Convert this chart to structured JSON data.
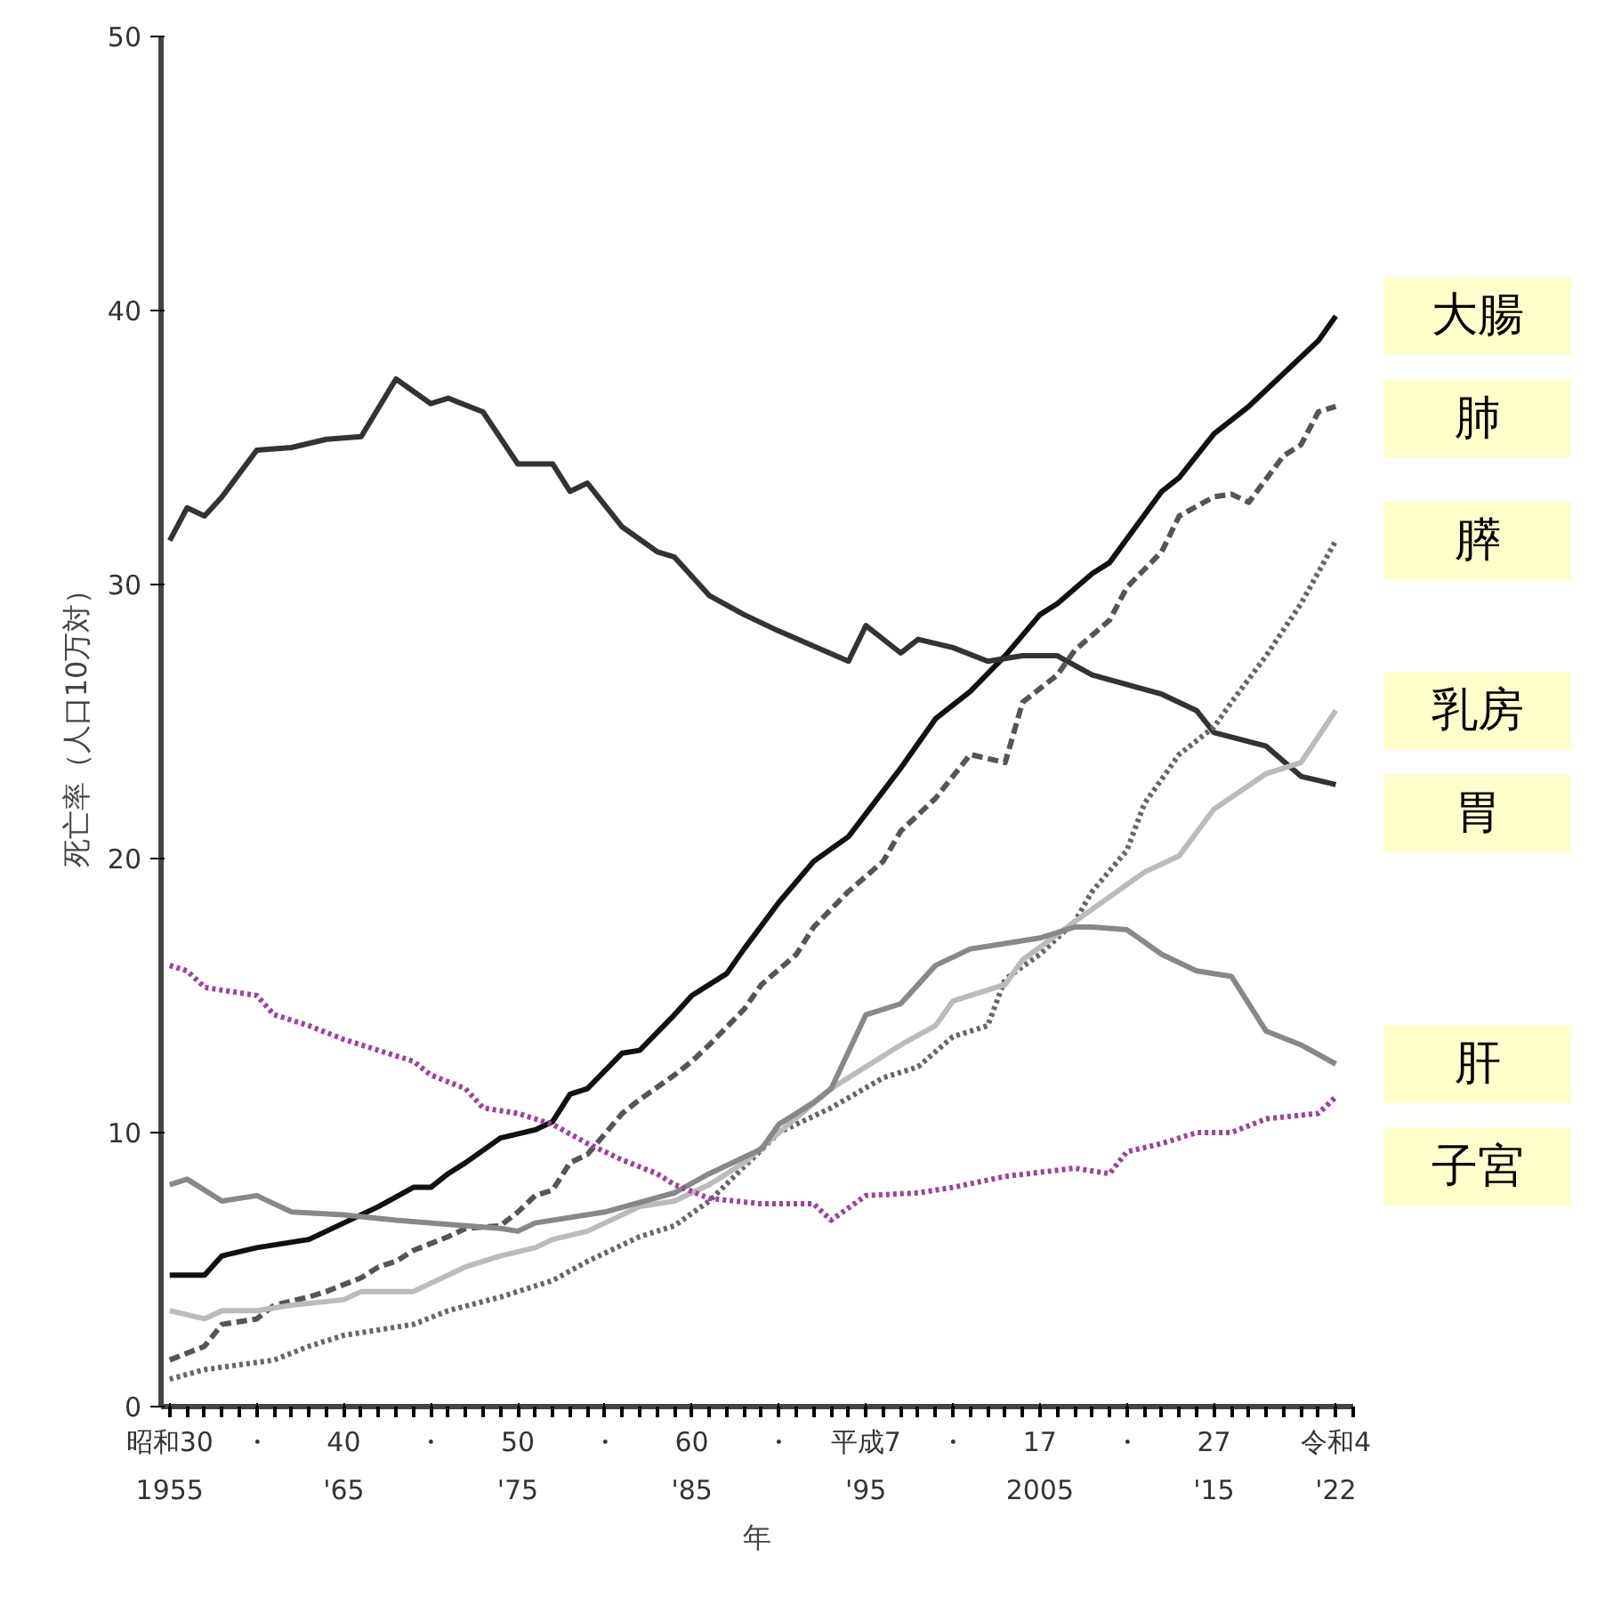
{
  "chart_data": {
    "type": "line",
    "xlabel": "年",
    "ylabel": "死亡率（人口10万対）",
    "xlim": [
      1954.5,
      2023
    ],
    "ylim": [
      0,
      50
    ],
    "xticks": [
      1955,
      {
        "value": 1960,
        "label": null
      },
      {
        "value": 1965,
        "label": "'65"
      },
      {
        "value": 1970,
        "label": null
      },
      {
        "value": 1975,
        "label": "'75"
      },
      {
        "value": 1980,
        "label": null
      },
      {
        "value": 1985,
        "label": "'85"
      },
      {
        "value": 1990,
        "label": null
      },
      {
        "value": 1995,
        "label": "'95"
      },
      {
        "value": 2000,
        "label": null
      },
      2005,
      {
        "value": 2010,
        "label": null
      },
      {
        "value": 2015,
        "label": "'15"
      },
      {
        "value": 2022,
        "label": "'22"
      }
    ],
    "annotations": [
      "昭和30",
      "・",
      "40",
      "・",
      "50",
      "・",
      "60",
      "・",
      "平成7",
      "・",
      "17",
      "・",
      "27",
      "令和4"
    ],
    "yticks": [
      0,
      10,
      20,
      30,
      40,
      50
    ],
    "grid": false,
    "legend": false,
    "series": [
      {
        "name": "大腸",
        "color": "#111111",
        "line_style": "solid",
        "x": [
          1955,
          1957,
          1958,
          1960,
          1963,
          1965,
          1967,
          1969,
          1970,
          1971,
          1972,
          1974,
          1976,
          1977,
          1978,
          1979,
          1981,
          1982,
          1984,
          1985,
          1987,
          1988,
          1990,
          1992,
          1994,
          1997,
          1999,
          2001,
          2003,
          2005,
          2006,
          2008,
          2009,
          2012,
          2013,
          2015,
          2017,
          2021,
          2022
        ],
        "values": [
          4.8,
          4.8,
          5.5,
          5.8,
          6.1,
          6.7,
          7.3,
          8.0,
          8.0,
          8.5,
          8.9,
          9.8,
          10.1,
          10.4,
          11.4,
          11.6,
          12.9,
          13.0,
          14.3,
          15.0,
          15.8,
          16.7,
          18.4,
          19.9,
          20.8,
          23.3,
          25.1,
          26.1,
          27.4,
          28.9,
          29.3,
          30.4,
          30.8,
          33.4,
          33.9,
          35.5,
          36.5,
          38.9,
          39.8
        ]
      },
      {
        "name": "胃",
        "color": "#333333",
        "line_style": "solid",
        "x": [
          1955,
          1956,
          1957,
          1958,
          1960,
          1962,
          1964,
          1966,
          1968,
          1970,
          1971,
          1973,
          1975,
          1977,
          1978,
          1979,
          1981,
          1983,
          1984,
          1986,
          1988,
          1990,
          1994,
          1995,
          1997,
          1998,
          2000,
          2002,
          2004,
          2006,
          2008,
          2012,
          2014,
          2015,
          2018,
          2020,
          2022
        ],
        "values": [
          31.6,
          32.8,
          32.5,
          33.2,
          34.9,
          35.0,
          35.3,
          35.4,
          37.5,
          36.6,
          36.8,
          36.3,
          34.4,
          34.4,
          33.4,
          33.7,
          32.1,
          31.2,
          31.0,
          29.6,
          28.9,
          28.3,
          27.2,
          28.5,
          27.5,
          28.0,
          27.7,
          27.2,
          27.4,
          27.4,
          26.7,
          26.0,
          25.4,
          24.6,
          24.1,
          23.0,
          22.7
        ]
      },
      {
        "name": "肺",
        "color": "#555555",
        "line_style": "dashed",
        "x": [
          1955,
          1957,
          1958,
          1960,
          1961,
          1963,
          1964,
          1966,
          1967,
          1968,
          1969,
          1971,
          1972,
          1974,
          1975,
          1976,
          1977,
          1978,
          1979,
          1981,
          1982,
          1984,
          1985,
          1986,
          1988,
          1989,
          1991,
          1992,
          1994,
          1996,
          1997,
          1999,
          2001,
          2003,
          2004,
          2006,
          2007,
          2009,
          2010,
          2012,
          2013,
          2015,
          2016,
          2017,
          2019,
          2020,
          2021,
          2022
        ],
        "values": [
          1.7,
          2.2,
          3.0,
          3.2,
          3.7,
          4.0,
          4.2,
          4.7,
          5.1,
          5.3,
          5.7,
          6.2,
          6.5,
          6.6,
          7.1,
          7.7,
          7.9,
          8.9,
          9.2,
          10.7,
          11.2,
          12.1,
          12.6,
          13.2,
          14.5,
          15.4,
          16.5,
          17.5,
          18.8,
          19.9,
          21.0,
          22.2,
          23.8,
          23.5,
          25.7,
          26.7,
          27.6,
          28.7,
          29.9,
          31.2,
          32.5,
          33.2,
          33.3,
          33.0,
          34.7,
          35.1,
          36.3,
          36.5
        ]
      },
      {
        "name": "膵",
        "color": "#666666",
        "line_style": "dotted",
        "x": [
          1955,
          1957,
          1961,
          1963,
          1965,
          1969,
          1971,
          1974,
          1977,
          1979,
          1982,
          1984,
          1986,
          1990,
          1993,
          1996,
          1998,
          2000,
          2002,
          2003,
          2005,
          2007,
          2008,
          2010,
          2011,
          2013,
          2015,
          2016,
          2018,
          2020,
          2022
        ],
        "values": [
          1.0,
          1.35,
          1.7,
          2.2,
          2.6,
          3.0,
          3.5,
          4.0,
          4.6,
          5.3,
          6.2,
          6.6,
          7.5,
          10.0,
          10.9,
          12.0,
          12.4,
          13.5,
          13.9,
          15.6,
          16.5,
          17.7,
          18.8,
          20.3,
          22.0,
          23.8,
          24.8,
          25.7,
          27.4,
          29.3,
          31.6
        ]
      },
      {
        "name": "乳房",
        "color": "#bbbbbb",
        "line_style": "solid",
        "x": [
          1955,
          1957,
          1958,
          1960,
          1962,
          1965,
          1966,
          1969,
          1971,
          1972,
          1974,
          1976,
          1977,
          1979,
          1980,
          1982,
          1984,
          1986,
          1988,
          1990,
          1993,
          1995,
          1997,
          1999,
          2000,
          2003,
          2004,
          2007,
          2009,
          2011,
          2013,
          2015,
          2018,
          2020,
          2022
        ],
        "values": [
          3.5,
          3.2,
          3.5,
          3.5,
          3.7,
          3.9,
          4.2,
          4.2,
          4.8,
          5.1,
          5.5,
          5.8,
          6.1,
          6.4,
          6.7,
          7.3,
          7.5,
          8.1,
          8.9,
          10.0,
          11.6,
          12.4,
          13.2,
          13.9,
          14.8,
          15.4,
          16.3,
          17.7,
          18.6,
          19.5,
          20.1,
          21.8,
          23.1,
          23.5,
          25.4
        ]
      },
      {
        "name": "肝",
        "color": "#888888",
        "line_style": "solid",
        "x": [
          1955,
          1956,
          1958,
          1960,
          1962,
          1965,
          1968,
          1972,
          1974,
          1975,
          1976,
          1980,
          1984,
          1986,
          1989,
          1990,
          1992,
          1993,
          1995,
          1997,
          1999,
          2001,
          2003,
          2005,
          2007,
          2008,
          2010,
          2012,
          2014,
          2016,
          2018,
          2020,
          2022
        ],
        "values": [
          8.1,
          8.3,
          7.5,
          7.7,
          7.1,
          7.0,
          6.8,
          6.6,
          6.5,
          6.4,
          6.7,
          7.1,
          7.8,
          8.5,
          9.4,
          10.3,
          11.1,
          11.6,
          14.3,
          14.7,
          16.1,
          16.7,
          16.9,
          17.1,
          17.5,
          17.5,
          17.4,
          16.5,
          15.9,
          15.7,
          13.7,
          13.2,
          12.5
        ]
      },
      {
        "name": "子宮",
        "color": "#a040a0",
        "line_style": "dotted",
        "x": [
          1955,
          1956,
          1957,
          1960,
          1961,
          1963,
          1965,
          1967,
          1969,
          1970,
          1972,
          1973,
          1975,
          1977,
          1979,
          1981,
          1983,
          1984,
          1986,
          1989,
          1992,
          1993,
          1995,
          1998,
          2000,
          2003,
          2007,
          2009,
          2010,
          2012,
          2014,
          2016,
          2018,
          2021,
          2022
        ],
        "values": [
          16.1,
          15.9,
          15.3,
          15.0,
          14.3,
          13.9,
          13.4,
          13.0,
          12.6,
          12.1,
          11.6,
          10.9,
          10.7,
          10.3,
          9.6,
          9.0,
          8.5,
          8.1,
          7.6,
          7.4,
          7.4,
          6.8,
          7.7,
          7.8,
          8.0,
          8.4,
          8.7,
          8.5,
          9.3,
          9.6,
          10.0,
          10.0,
          10.5,
          10.7,
          11.3
        ]
      }
    ]
  }
}
